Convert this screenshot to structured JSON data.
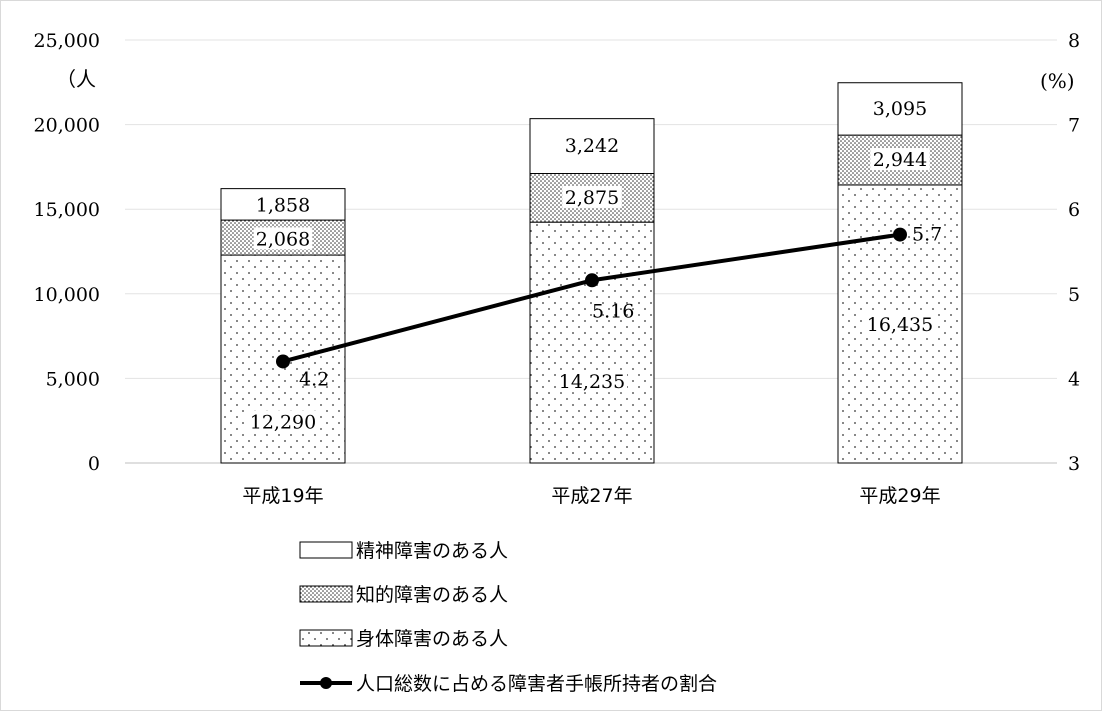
{
  "chart_data": {
    "type": "bar",
    "stacked": true,
    "categories": [
      "平成19年",
      "平成27年",
      "平成29年"
    ],
    "series": [
      {
        "name": "身体障害のある人",
        "values": [
          12290,
          14235,
          16435
        ],
        "labels": [
          "12,290",
          "14,235",
          "16,435"
        ]
      },
      {
        "name": "知的障害のある人",
        "values": [
          2068,
          2875,
          2944
        ],
        "labels": [
          "2,068",
          "2,875",
          "2,944"
        ]
      },
      {
        "name": "精神障害のある人",
        "values": [
          1858,
          3242,
          3095
        ],
        "labels": [
          "1,858",
          "3,242",
          "3,095"
        ]
      }
    ],
    "line_series": {
      "name": "人口総数に占める障害者手帳所持者の割合",
      "values": [
        4.2,
        5.16,
        5.7
      ],
      "labels": [
        "4.2",
        "5.16",
        "5.7"
      ],
      "axis": "right"
    },
    "ylabel": "（人",
    "y2label": "(%)",
    "ylim": [
      0,
      25000
    ],
    "y2lim": [
      3,
      8
    ],
    "yticks": [
      "0",
      "5,000",
      "10,000",
      "15,000",
      "20,000",
      "25,000"
    ],
    "y2ticks": [
      "3",
      "4",
      "5",
      "6",
      "7",
      "8"
    ],
    "grid": true,
    "legend_position": "bottom"
  }
}
